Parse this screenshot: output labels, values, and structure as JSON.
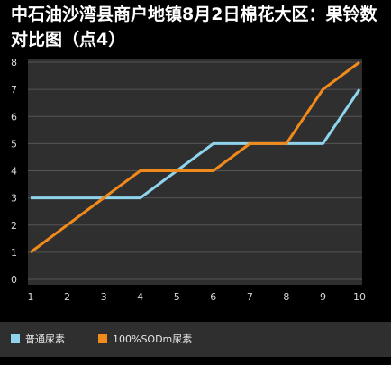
{
  "title": "中石油沙湾县商户地镇8月2日棉花大区：果铃数对比图（点4）",
  "chart_data": {
    "type": "line",
    "title": "中石油沙湾县商户地镇8月2日棉花大区：果铃数对比图（点4）",
    "x": [
      1,
      2,
      3,
      4,
      5,
      6,
      7,
      8,
      9,
      10
    ],
    "x_tick_labels": [
      "1",
      "2",
      "3",
      "4",
      "5",
      "6",
      "7",
      "8",
      "9",
      "10"
    ],
    "y_tick_labels": [
      "0",
      "1",
      "2",
      "3",
      "4",
      "5",
      "6",
      "7",
      "8"
    ],
    "ylim": [
      0,
      8
    ],
    "grid": true,
    "legend_position": "bottom-left",
    "series": [
      {
        "name": "普通尿素",
        "color": "#8fd3ec",
        "values": [
          3,
          3,
          3,
          3,
          4,
          5,
          5,
          5,
          5,
          7
        ]
      },
      {
        "name": "100%SODm尿素",
        "color": "#f08a1c",
        "values": [
          1,
          2,
          3,
          4,
          4,
          4,
          5,
          5,
          7,
          8
        ]
      }
    ]
  },
  "colors": {
    "background": "#000000",
    "plot_background": "#2f2f2f",
    "gridline": "#555555",
    "legend_background": "#2f2f2f"
  }
}
